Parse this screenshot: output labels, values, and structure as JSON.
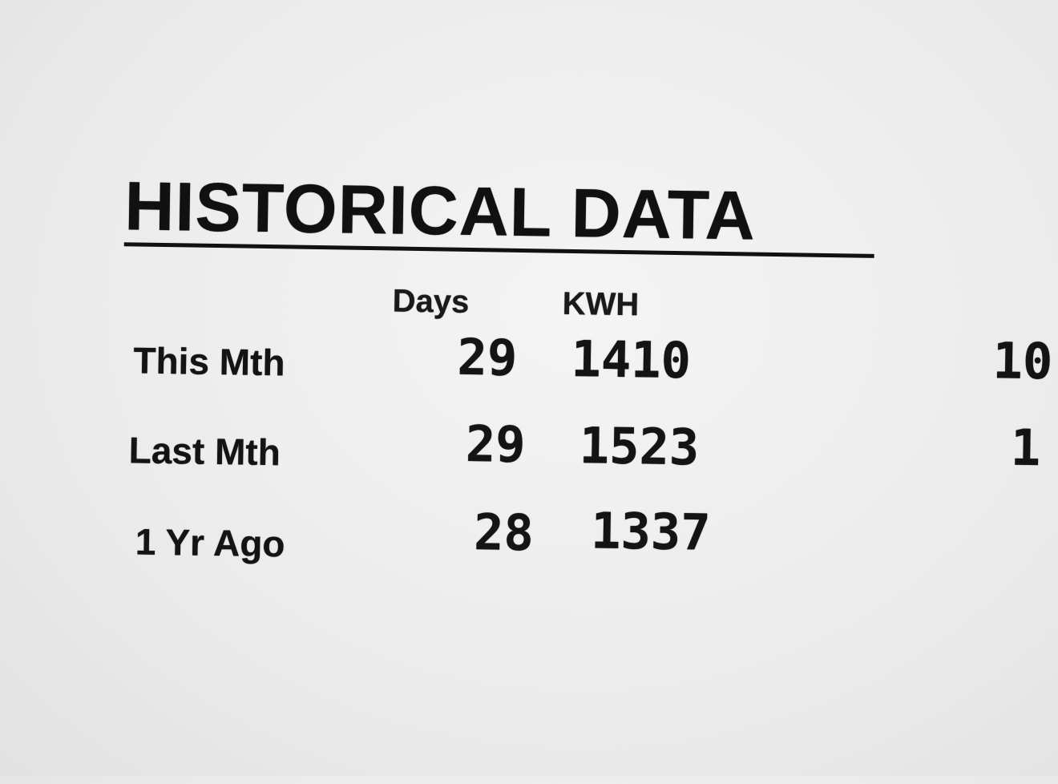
{
  "title": "HISTORICAL DATA",
  "columns": {
    "days": "Days",
    "kwh": "KWH"
  },
  "rows": [
    {
      "label": "This Mth",
      "days": "29",
      "kwh": "1410",
      "cut_off": "10"
    },
    {
      "label": "Last Mth",
      "days": "29",
      "kwh": "1523",
      "cut_off": "1"
    },
    {
      "label": "1 Yr Ago",
      "days": "28",
      "kwh": "1337",
      "cut_off": ""
    }
  ]
}
